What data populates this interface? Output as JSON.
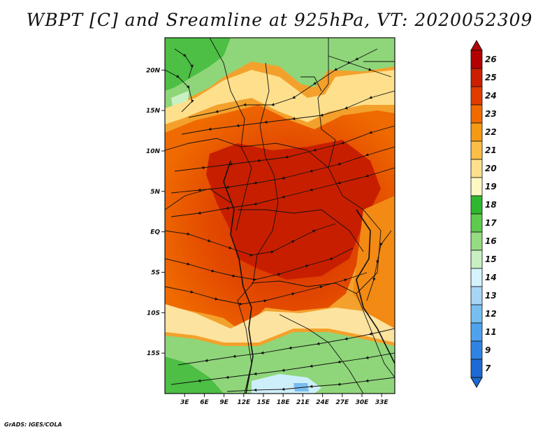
{
  "title": "WBPT [C] and Sreamline at 925hPa, VT: 2020052309",
  "credit": "GrADS: IGES/COLA",
  "map": {
    "lon_range": [
      0,
      35
    ],
    "lat_range": [
      -20,
      24
    ],
    "lon_ticks": [
      {
        "lon": 3,
        "label": "3E"
      },
      {
        "lon": 6,
        "label": "6E"
      },
      {
        "lon": 9,
        "label": "9E"
      },
      {
        "lon": 12,
        "label": "12E"
      },
      {
        "lon": 15,
        "label": "15E"
      },
      {
        "lon": 18,
        "label": "18E"
      },
      {
        "lon": 21,
        "label": "21E"
      },
      {
        "lon": 24,
        "label": "24E"
      },
      {
        "lon": 27,
        "label": "27E"
      },
      {
        "lon": 30,
        "label": "30E"
      },
      {
        "lon": 33,
        "label": "33E"
      }
    ],
    "lat_ticks": [
      {
        "lat": 20,
        "label": "20N"
      },
      {
        "lat": 15,
        "label": "15N"
      },
      {
        "lat": 10,
        "label": "10N"
      },
      {
        "lat": 5,
        "label": "5N"
      },
      {
        "lat": 0,
        "label": "EQ"
      },
      {
        "lat": -5,
        "label": "5S"
      },
      {
        "lat": -10,
        "label": "10S"
      },
      {
        "lat": -15,
        "label": "15S"
      }
    ]
  },
  "colorbar": {
    "labels": [
      "26",
      "25",
      "24",
      "23",
      "22",
      "21",
      "20",
      "19",
      "18",
      "17",
      "16",
      "15",
      "14",
      "13",
      "12",
      "11",
      "9",
      "7"
    ],
    "colors": [
      "#b40000",
      "#cd1e00",
      "#e13c00",
      "#f06a00",
      "#f59a14",
      "#fbbe46",
      "#fee08c",
      "#fff8c3",
      "#2fb82f",
      "#5ecb4e",
      "#96dc82",
      "#c8f0c3",
      "#d5f3ff",
      "#a6d5f7",
      "#78bff0",
      "#4fa3ee",
      "#2f84e3",
      "#1c6ad3"
    ]
  }
}
